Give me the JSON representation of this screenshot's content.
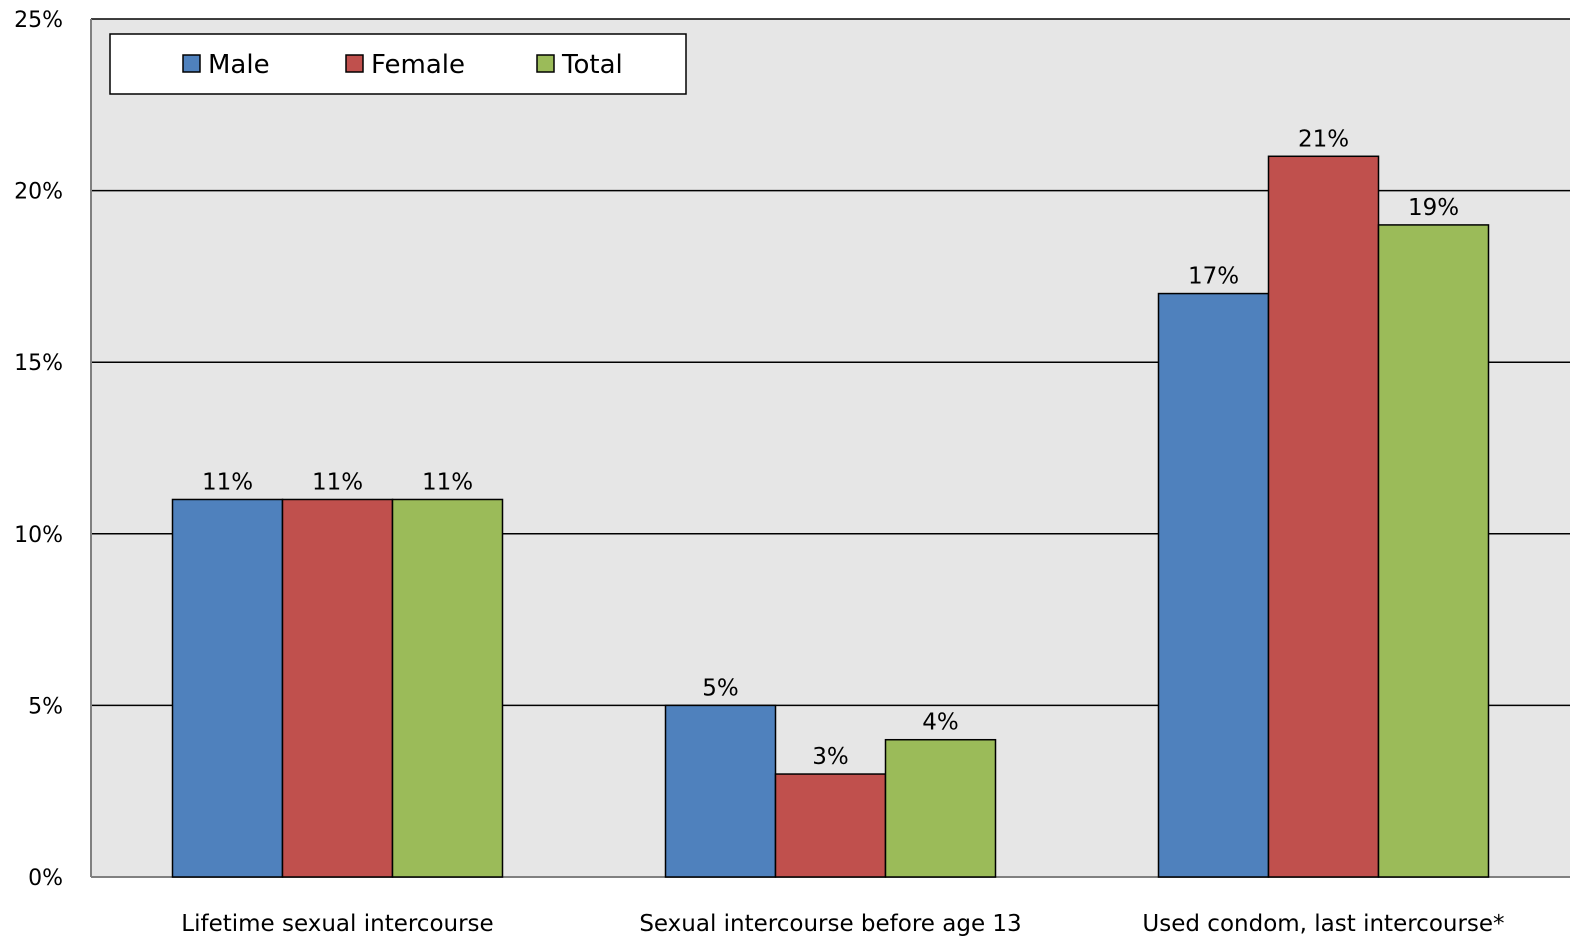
{
  "chart_data": {
    "type": "bar",
    "categories": [
      "Lifetime sexual intercourse",
      "Sexual intercourse before age 13",
      "Used condom, last intercourse*"
    ],
    "series": [
      {
        "name": "Male",
        "values": [
          11,
          5,
          17
        ],
        "labels": [
          "11%",
          "5%",
          "17%"
        ],
        "color": "#4F81BD"
      },
      {
        "name": "Female",
        "values": [
          11,
          3,
          21
        ],
        "labels": [
          "11%",
          "3%",
          "21%"
        ],
        "color": "#C0504D"
      },
      {
        "name": "Total",
        "values": [
          11,
          4,
          19
        ],
        "labels": [
          "11%",
          "4%",
          "19%"
        ],
        "color": "#9BBB59"
      }
    ],
    "yticks": [
      0,
      5,
      10,
      15,
      20,
      25
    ],
    "ytick_labels": [
      "0%",
      "5%",
      "10%",
      "15%",
      "20%",
      "25%"
    ],
    "ylim": [
      0,
      25
    ],
    "grid": true,
    "legend_position": "top-left",
    "plot_background": "#E6E6E6"
  }
}
